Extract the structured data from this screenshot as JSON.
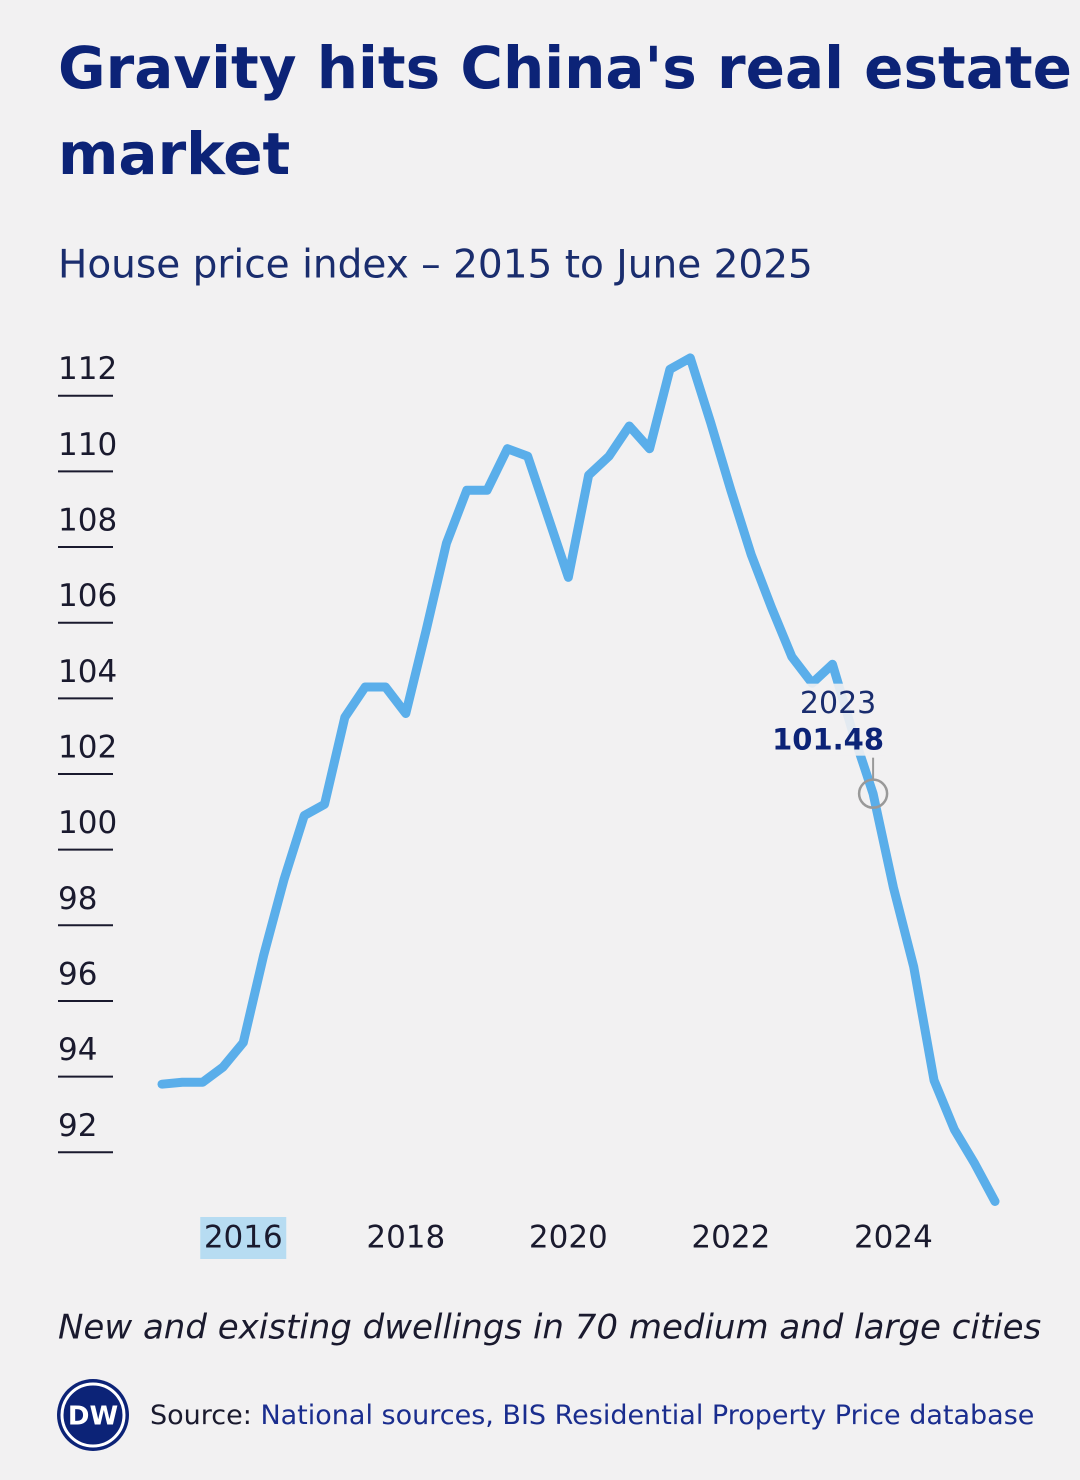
{
  "chart_data": {
    "type": "line",
    "title": "Gravity hits China's real estate market",
    "subtitle": "House price index – 2015 to June 2025",
    "note": "New and existing dwellings in 70 medium and large cities",
    "source_label": "Source:",
    "source": "National sources, BIS Residential Property Price database",
    "logo": "DW",
    "x": [
      2015,
      2015.25,
      2015.5,
      2015.75,
      2016,
      2016.25,
      2016.5,
      2016.75,
      2017,
      2017.25,
      2017.5,
      2017.75,
      2018,
      2018.25,
      2018.5,
      2018.75,
      2019,
      2019.25,
      2019.5,
      2019.75,
      2020,
      2020.25,
      2020.5,
      2020.75,
      2021,
      2021.25,
      2021.5,
      2021.75,
      2022,
      2022.25,
      2022.5,
      2022.75,
      2023,
      2023.25,
      2023.5,
      2023.75,
      2024,
      2024.25,
      2024.5,
      2024.75,
      2025,
      2025.25
    ],
    "series": [
      {
        "name": "House price index",
        "color": "#5aaeea",
        "values": [
          93.8,
          93.85,
          93.85,
          94.25,
          94.9,
          97.2,
          99.2,
          100.9,
          101.2,
          103.5,
          104.3,
          104.3,
          103.6,
          105.8,
          108.1,
          109.5,
          109.5,
          110.6,
          110.4,
          108.8,
          107.2,
          109.9,
          110.4,
          111.2,
          110.6,
          112.7,
          113.0,
          111.3,
          109.5,
          107.8,
          106.4,
          105.1,
          104.4,
          104.9,
          103.1,
          101.48,
          99.0,
          96.9,
          93.9,
          92.6,
          91.7,
          90.7
        ]
      }
    ],
    "highlight": {
      "x": 2023.75,
      "label": "2023"
    },
    "xlim": [
      2015,
      2025.25
    ],
    "xticks": [
      2016,
      2018,
      2020,
      2022,
      2024
    ],
    "ylim": [
      90.5,
      113.5
    ],
    "yticks": [
      92,
      94,
      96,
      98,
      100,
      102,
      104,
      106,
      108,
      110,
      112
    ]
  }
}
